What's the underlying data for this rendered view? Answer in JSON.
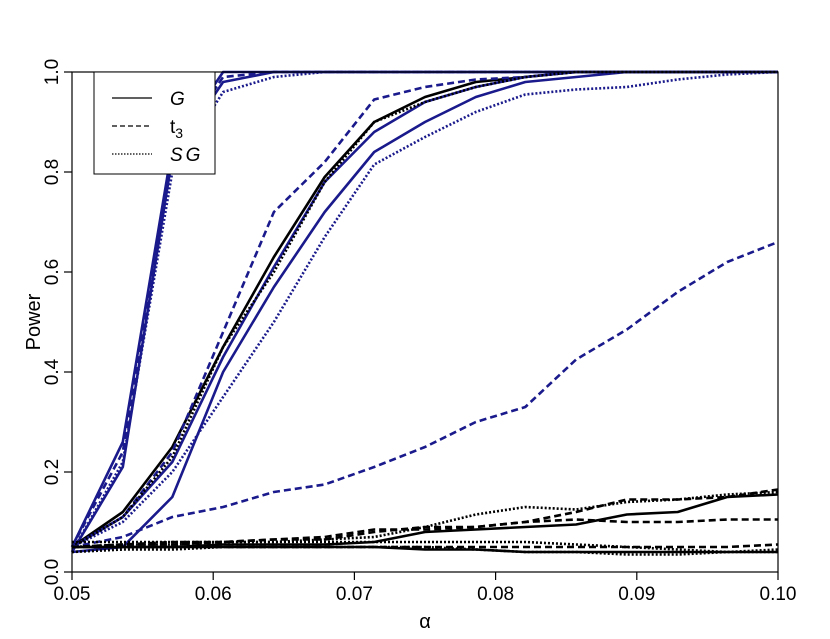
{
  "chart_data": {
    "type": "line",
    "title": "",
    "xlabel": "α",
    "ylabel": "Power",
    "xlim": [
      0.05,
      0.1
    ],
    "ylim": [
      0.0,
      1.0
    ],
    "x_ticks": [
      0.05,
      0.06,
      0.07,
      0.08,
      0.09,
      0.1
    ],
    "x_tick_labels": [
      "0.05",
      "0.06",
      "0.07",
      "0.08",
      "0.09",
      "0.10"
    ],
    "y_ticks": [
      0.0,
      0.2,
      0.4,
      0.6,
      0.8,
      1.0
    ],
    "y_tick_labels": [
      "0.0",
      "0.2",
      "0.4",
      "0.6",
      "0.8",
      "1.0"
    ],
    "grid": false,
    "legend": {
      "placement": "top-left",
      "entries": [
        {
          "label": "G",
          "dash": "solid"
        },
        {
          "label": "t",
          "sub": "3",
          "dash": "dashed"
        },
        {
          "label": "SG",
          "dash": "dotted"
        }
      ]
    },
    "colors": {
      "navy": "#1a1a8c",
      "black": "#000000"
    },
    "x": [
      0.05,
      0.0536,
      0.0571,
      0.0607,
      0.0643,
      0.0679,
      0.0714,
      0.075,
      0.0786,
      0.0821,
      0.0857,
      0.0893,
      0.0929,
      0.0964,
      0.1
    ],
    "series": [
      {
        "color": "navy",
        "dash": "solid",
        "values": [
          0.05,
          0.26,
          0.85,
          1.0,
          1.0,
          1.0,
          1.0,
          1.0,
          1.0,
          1.0,
          1.0,
          1.0,
          1.0,
          1.0,
          1.0
        ]
      },
      {
        "color": "navy",
        "dash": "solid",
        "values": [
          0.04,
          0.21,
          0.83,
          0.98,
          1.0,
          1.0,
          1.0,
          1.0,
          1.0,
          1.0,
          1.0,
          1.0,
          1.0,
          1.0,
          1.0
        ]
      },
      {
        "color": "navy",
        "dash": "dashed",
        "values": [
          0.05,
          0.24,
          0.84,
          0.99,
          1.0,
          1.0,
          1.0,
          1.0,
          1.0,
          1.0,
          1.0,
          1.0,
          1.0,
          1.0,
          1.0
        ]
      },
      {
        "color": "navy",
        "dash": "dotted",
        "values": [
          0.04,
          0.22,
          0.8,
          0.96,
          0.99,
          1.0,
          1.0,
          1.0,
          1.0,
          1.0,
          1.0,
          1.0,
          1.0,
          1.0,
          1.0
        ]
      },
      {
        "color": "black",
        "dash": "solid",
        "values": [
          0.05,
          0.12,
          0.25,
          0.45,
          0.63,
          0.79,
          0.9,
          0.95,
          0.98,
          0.99,
          1.0,
          1.0,
          1.0,
          1.0,
          1.0
        ]
      },
      {
        "color": "navy",
        "dash": "solid",
        "values": [
          0.05,
          0.11,
          0.22,
          0.43,
          0.61,
          0.78,
          0.88,
          0.94,
          0.97,
          0.99,
          1.0,
          1.0,
          1.0,
          1.0,
          1.0
        ]
      },
      {
        "color": "navy",
        "dash": "solid",
        "values": [
          0.04,
          0.05,
          0.15,
          0.4,
          0.57,
          0.72,
          0.84,
          0.9,
          0.95,
          0.98,
          0.99,
          1.0,
          1.0,
          1.0,
          1.0
        ]
      },
      {
        "color": "navy",
        "dash": "dashed",
        "values": [
          0.05,
          0.11,
          0.24,
          0.48,
          0.72,
          0.82,
          0.945,
          0.97,
          0.985,
          0.99,
          1.0,
          1.0,
          1.0,
          1.0,
          1.0
        ]
      },
      {
        "color": "navy",
        "dash": "dotted",
        "values": [
          0.05,
          0.1,
          0.2,
          0.35,
          0.5,
          0.67,
          0.815,
          0.87,
          0.92,
          0.955,
          0.965,
          0.97,
          0.985,
          0.995,
          1.0
        ]
      },
      {
        "color": "black",
        "dash": "dotted",
        "values": [
          0.05,
          0.11,
          0.23,
          0.45,
          0.6,
          0.78,
          0.9,
          0.94,
          0.97,
          0.99,
          1.0,
          1.0,
          1.0,
          1.0,
          1.0
        ]
      },
      {
        "color": "navy",
        "dash": "dashed",
        "values": [
          0.05,
          0.07,
          0.11,
          0.13,
          0.16,
          0.175,
          0.21,
          0.25,
          0.3,
          0.33,
          0.425,
          0.485,
          0.56,
          0.62,
          0.66
        ]
      },
      {
        "color": "black",
        "dash": "solid",
        "values": [
          0.05,
          0.05,
          0.05,
          0.055,
          0.055,
          0.055,
          0.06,
          0.08,
          0.085,
          0.09,
          0.095,
          0.115,
          0.12,
          0.15,
          0.155
        ]
      },
      {
        "color": "black",
        "dash": "dotted",
        "values": [
          0.05,
          0.055,
          0.055,
          0.06,
          0.06,
          0.065,
          0.07,
          0.09,
          0.115,
          0.13,
          0.125,
          0.14,
          0.145,
          0.155,
          0.16
        ]
      },
      {
        "color": "black",
        "dash": "dashed",
        "values": [
          0.05,
          0.055,
          0.055,
          0.06,
          0.065,
          0.065,
          0.08,
          0.09,
          0.09,
          0.1,
          0.12,
          0.145,
          0.145,
          0.15,
          0.165
        ]
      },
      {
        "color": "black",
        "dash": "dashed",
        "values": [
          0.05,
          0.055,
          0.06,
          0.06,
          0.065,
          0.07,
          0.085,
          0.085,
          0.09,
          0.1,
          0.105,
          0.1,
          0.1,
          0.105,
          0.105
        ]
      },
      {
        "color": "black",
        "dash": "solid",
        "values": [
          0.05,
          0.05,
          0.05,
          0.05,
          0.05,
          0.05,
          0.05,
          0.045,
          0.045,
          0.04,
          0.04,
          0.04,
          0.04,
          0.04,
          0.04
        ]
      },
      {
        "color": "black",
        "dash": "dotted",
        "values": [
          0.06,
          0.06,
          0.06,
          0.06,
          0.06,
          0.06,
          0.06,
          0.06,
          0.06,
          0.06,
          0.055,
          0.05,
          0.045,
          0.04,
          0.04
        ]
      },
      {
        "color": "black",
        "dash": "dashed",
        "values": [
          0.05,
          0.05,
          0.05,
          0.05,
          0.05,
          0.05,
          0.05,
          0.05,
          0.05,
          0.05,
          0.05,
          0.05,
          0.05,
          0.05,
          0.055
        ]
      },
      {
        "color": "black",
        "dash": "dotted",
        "values": [
          0.04,
          0.045,
          0.045,
          0.05,
          0.05,
          0.05,
          0.05,
          0.05,
          0.045,
          0.04,
          0.04,
          0.035,
          0.035,
          0.04,
          0.045
        ]
      }
    ]
  }
}
